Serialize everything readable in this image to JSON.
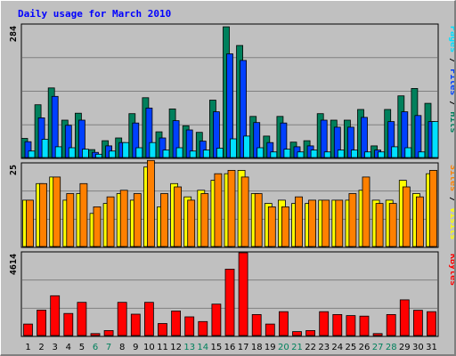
{
  "chart_data": [
    {
      "type": "bar",
      "title": "Daily usage for March 2010",
      "panel": "hits-files-pages",
      "y_max_label": "284",
      "ylim": [
        0,
        284
      ],
      "grid": true,
      "legend": [
        {
          "name": "Pages",
          "color": "#00E0FF"
        },
        {
          "name": "Files",
          "color": "#0040FF"
        },
        {
          "name": "Hits",
          "color": "#00805C"
        }
      ],
      "categories": [
        "1",
        "2",
        "3",
        "4",
        "5",
        "6",
        "7",
        "8",
        "9",
        "10",
        "11",
        "12",
        "13",
        "14",
        "15",
        "16",
        "17",
        "18",
        "19",
        "20",
        "21",
        "22",
        "23",
        "24",
        "25",
        "26",
        "27",
        "28",
        "29",
        "30",
        "31"
      ],
      "weekend_days": [
        "6",
        "7",
        "13",
        "14",
        "20",
        "21",
        "27",
        "28"
      ],
      "series": [
        {
          "name": "Hits",
          "values": [
            41,
            113,
            149,
            80,
            95,
            17,
            36,
            42,
            94,
            128,
            55,
            104,
            68,
            54,
            123,
            280,
            240,
            88,
            46,
            88,
            33,
            36,
            94,
            80,
            80,
            103,
            25,
            103,
            132,
            148,
            116
          ]
        },
        {
          "name": "Files",
          "values": [
            34,
            85,
            131,
            69,
            80,
            11,
            25,
            32,
            74,
            106,
            42,
            79,
            59,
            35,
            98,
            222,
            208,
            75,
            32,
            74,
            23,
            25,
            80,
            65,
            65,
            86,
            16,
            77,
            98,
            90,
            77
          ]
        },
        {
          "name": "Pages",
          "values": [
            14,
            39,
            23,
            21,
            18,
            7,
            14,
            32,
            21,
            32,
            16,
            21,
            14,
            16,
            20,
            40,
            46,
            21,
            12,
            18,
            12,
            16,
            12,
            16,
            16,
            12,
            12,
            23,
            21,
            12,
            77
          ]
        }
      ]
    },
    {
      "type": "bar",
      "panel": "visits-sites",
      "y_max_label": "25",
      "ylim": [
        0,
        25
      ],
      "grid": true,
      "legend": [
        {
          "name": "Sites",
          "color": "#FF8000"
        },
        {
          "name": "Visits",
          "color": "#FFFF00"
        }
      ],
      "categories": [
        "1",
        "2",
        "3",
        "4",
        "5",
        "6",
        "7",
        "8",
        "9",
        "10",
        "11",
        "12",
        "13",
        "14",
        "15",
        "16",
        "17",
        "18",
        "19",
        "20",
        "21",
        "22",
        "23",
        "24",
        "25",
        "26",
        "27",
        "28",
        "29",
        "30",
        "31"
      ],
      "series": [
        {
          "name": "Visits",
          "values": [
            14,
            19,
            21,
            14,
            16,
            10,
            13,
            16,
            14,
            24,
            12,
            19,
            15,
            17,
            20,
            22,
            23,
            16,
            13,
            14,
            13,
            13,
            14,
            14,
            14,
            17,
            14,
            14,
            20,
            16,
            22
          ]
        },
        {
          "name": "Sites",
          "values": [
            14,
            19,
            21,
            16,
            19,
            12,
            15,
            17,
            16,
            26,
            16,
            18,
            14,
            16,
            22,
            23,
            21,
            16,
            12,
            12,
            15,
            14,
            14,
            14,
            16,
            21,
            13,
            13,
            18,
            15,
            23
          ]
        }
      ]
    },
    {
      "type": "bar",
      "panel": "kbytes",
      "y_max_label": "4614",
      "ylim": [
        0,
        4614
      ],
      "grid": true,
      "legend": [
        {
          "name": "KBytes",
          "color": "#FF0000"
        }
      ],
      "categories": [
        "1",
        "2",
        "3",
        "4",
        "5",
        "6",
        "7",
        "8",
        "9",
        "10",
        "11",
        "12",
        "13",
        "14",
        "15",
        "16",
        "17",
        "18",
        "19",
        "20",
        "21",
        "22",
        "23",
        "24",
        "25",
        "26",
        "27",
        "28",
        "29",
        "30",
        "31"
      ],
      "series": [
        {
          "name": "KBytes",
          "values": [
            640,
            1420,
            2220,
            1230,
            1850,
            110,
            280,
            1850,
            1190,
            1850,
            670,
            1370,
            1040,
            780,
            1750,
            3700,
            4614,
            1170,
            640,
            1330,
            220,
            280,
            1330,
            1170,
            1110,
            1080,
            110,
            1170,
            1990,
            1410,
            1330
          ]
        }
      ]
    }
  ]
}
